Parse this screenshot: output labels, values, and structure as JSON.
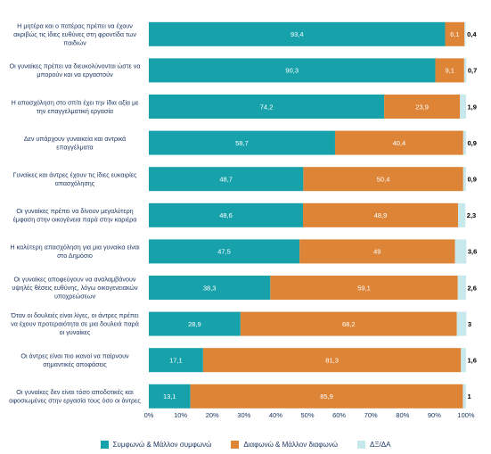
{
  "chart_data": {
    "type": "bar",
    "orientation": "horizontal",
    "stacked": true,
    "categories": [
      "Η μητέρα και ο πατέρας πρέπει να έχουν ακριβώς τις ίδιες ευθύνες στη φροντίδα των παιδιών",
      "Οι γυναίκες πρέπει να διευκολύνονται ώστε να μπορούν και να εργαστούν",
      "Η απασχόληση στο σπίτι έχει την ίδια αξία με την επαγγελματική εργασία",
      "Δεν υπάρχουν γυναικεία και αντρικά επαγγέλματα",
      "Γυναίκες και άντρες έχουν τις ίδιες ευκαιρίες απασχόλησης",
      "Οι γυναίκες πρέπει να δίνουν μεγαλύτερη έμφαση στην οικογένεια παρά στην καριέρα",
      "Η καλύτερη απασχόληση για μια γυναίκα είναι στο Δημόσιο",
      "Οι γυναίκες αποφεύγουν να αναλαμβάνουν υψηλές θέσεις ευθύνης, λόγω οικογενειακών υποχρεώσεων",
      "Όταν οι δουλειές είναι λίγες, οι άντρες πρέπει να έχουν προτεραιότητα σε μια δουλειά παρά οι γυναίκες",
      "Οι άντρες είναι πιο ικανοί να παίρνουν σημαντικές αποφάσεις",
      "Οι γυναίκες δεν είναι τόσο αποδοτικές και αφοσιωμένες στην εργασία τους όσο οι άντρες"
    ],
    "series": [
      {
        "name": "Συμφωνώ & Μάλλον συμφωνώ",
        "color": "#17a2ab",
        "values": [
          93.4,
          90.3,
          74.2,
          58.7,
          48.7,
          48.6,
          47.5,
          38.3,
          28.9,
          17.1,
          13.1
        ],
        "labels": [
          "93,4",
          "90,3",
          "74,2",
          "58,7",
          "48,7",
          "48,6",
          "47,5",
          "38,3",
          "28,9",
          "17,1",
          "13,1"
        ]
      },
      {
        "name": "Διαφωνώ & Μάλλον διαφωνώ",
        "color": "#dd8436",
        "values": [
          6.1,
          9.1,
          23.9,
          40.4,
          50.4,
          48.9,
          49,
          59.1,
          68.2,
          81.3,
          85.9
        ],
        "labels": [
          "6,1",
          "9,1",
          "23,9",
          "40,4",
          "50,4",
          "48,9",
          "49",
          "59,1",
          "68,2",
          "81,3",
          "85,9"
        ]
      },
      {
        "name": "ΔΞ/ΔΑ",
        "color": "#c7e9ec",
        "values": [
          0.4,
          0.7,
          1.9,
          0.9,
          0.9,
          2.3,
          3.6,
          2.6,
          3,
          1.6,
          1
        ],
        "labels": [
          "0,4",
          "0,7",
          "1,9",
          "0,9",
          "0,9",
          "2,3",
          "3,6",
          "2,6",
          "3",
          "1,6",
          "1"
        ]
      }
    ],
    "x_ticks": [
      "0%",
      "10%",
      "20%",
      "30%",
      "40%",
      "50%",
      "60%",
      "70%",
      "80%",
      "90%",
      "100%"
    ],
    "xlim": [
      0,
      100
    ],
    "legend_position": "bottom",
    "grid": false
  },
  "legend": {
    "items": [
      {
        "label": "Συμφωνώ & Μάλλον συμφωνώ",
        "color": "#17a2ab"
      },
      {
        "label": "Διαφωνώ & Μάλλον διαφωνώ",
        "color": "#dd8436"
      },
      {
        "label": "ΔΞ/ΔΑ",
        "color": "#c7e9ec"
      }
    ]
  }
}
